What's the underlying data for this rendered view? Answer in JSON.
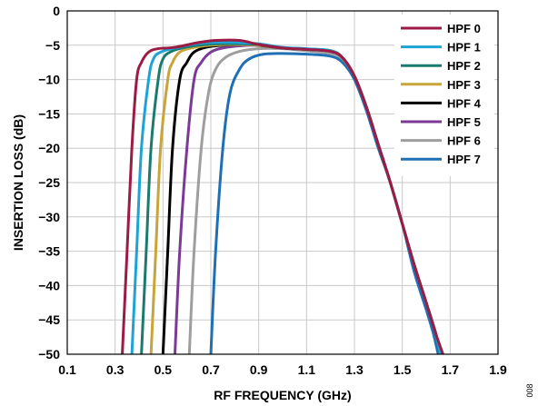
{
  "chart_data": {
    "type": "line",
    "title": "",
    "xlabel": "RF FREQUENCY (GHz)",
    "ylabel": "INSERTION LOSS (dB)",
    "xlim": [
      0.1,
      1.9
    ],
    "ylim": [
      -50,
      0
    ],
    "x_ticks": [
      0.1,
      0.3,
      0.5,
      0.7,
      0.9,
      1.1,
      1.3,
      1.5,
      1.7,
      1.9
    ],
    "x_tick_labels": [
      "0.1",
      "0.3",
      "0.5",
      "0.7",
      "0.9",
      "1.1",
      "1.3",
      "1.5",
      "1.7",
      "1.9"
    ],
    "y_ticks": [
      0,
      -5,
      -10,
      -15,
      -20,
      -25,
      -30,
      -35,
      -40,
      -45,
      -50
    ],
    "y_tick_labels": [
      "0",
      "−5",
      "−10",
      "−15",
      "−20",
      "−25",
      "−30",
      "−35",
      "−40",
      "−45",
      "−50"
    ],
    "grid": true,
    "legend_position": "top-right",
    "figure_id": "008",
    "series": [
      {
        "name": "HPF 0",
        "color": "#9b1b45",
        "points": [
          [
            0.33,
            -50
          ],
          [
            0.35,
            -35
          ],
          [
            0.37,
            -20
          ],
          [
            0.39,
            -10
          ],
          [
            0.41,
            -7.5
          ],
          [
            0.44,
            -6
          ],
          [
            0.48,
            -5.5
          ],
          [
            0.55,
            -5.3
          ],
          [
            0.65,
            -4.6
          ],
          [
            0.72,
            -4.3
          ],
          [
            0.82,
            -4.3
          ],
          [
            0.9,
            -4.9
          ],
          [
            1.0,
            -5.4
          ],
          [
            1.1,
            -5.6
          ],
          [
            1.2,
            -5.9
          ],
          [
            1.25,
            -6.8
          ],
          [
            1.3,
            -9.5
          ],
          [
            1.35,
            -14
          ],
          [
            1.4,
            -19.5
          ],
          [
            1.45,
            -25
          ],
          [
            1.5,
            -31
          ],
          [
            1.55,
            -37
          ],
          [
            1.6,
            -42.5
          ],
          [
            1.64,
            -47
          ],
          [
            1.67,
            -50
          ]
        ]
      },
      {
        "name": "HPF 1",
        "color": "#1ea3d6",
        "points": [
          [
            0.37,
            -50
          ],
          [
            0.39,
            -35
          ],
          [
            0.41,
            -20
          ],
          [
            0.44,
            -10
          ],
          [
            0.46,
            -7
          ],
          [
            0.49,
            -6
          ],
          [
            0.55,
            -5.4
          ],
          [
            0.62,
            -4.9
          ],
          [
            0.7,
            -4.6
          ],
          [
            0.8,
            -4.6
          ],
          [
            0.9,
            -4.8
          ],
          [
            1.0,
            -5.3
          ],
          [
            1.1,
            -5.5
          ],
          [
            1.2,
            -5.8
          ],
          [
            1.25,
            -6.8
          ],
          [
            1.3,
            -9.5
          ],
          [
            1.35,
            -14
          ],
          [
            1.4,
            -19.5
          ],
          [
            1.45,
            -25
          ],
          [
            1.5,
            -31
          ],
          [
            1.55,
            -37
          ],
          [
            1.6,
            -42.5
          ],
          [
            1.64,
            -47
          ],
          [
            1.66,
            -50
          ]
        ]
      },
      {
        "name": "HPF 2",
        "color": "#1b7a6e",
        "points": [
          [
            0.41,
            -50
          ],
          [
            0.43,
            -35
          ],
          [
            0.45,
            -20
          ],
          [
            0.48,
            -10
          ],
          [
            0.5,
            -7
          ],
          [
            0.53,
            -6
          ],
          [
            0.58,
            -5.4
          ],
          [
            0.65,
            -5.0
          ],
          [
            0.72,
            -4.8
          ],
          [
            0.82,
            -4.8
          ],
          [
            0.9,
            -4.9
          ],
          [
            1.0,
            -5.4
          ],
          [
            1.1,
            -5.6
          ],
          [
            1.2,
            -5.8
          ],
          [
            1.25,
            -6.8
          ],
          [
            1.3,
            -9.5
          ],
          [
            1.35,
            -14
          ],
          [
            1.4,
            -19.5
          ],
          [
            1.45,
            -25
          ],
          [
            1.5,
            -31
          ],
          [
            1.55,
            -37
          ],
          [
            1.6,
            -42.5
          ],
          [
            1.64,
            -47
          ],
          [
            1.66,
            -50
          ]
        ]
      },
      {
        "name": "HPF 3",
        "color": "#c9a43a",
        "points": [
          [
            0.45,
            -50
          ],
          [
            0.47,
            -35
          ],
          [
            0.49,
            -20
          ],
          [
            0.52,
            -10
          ],
          [
            0.54,
            -7.5
          ],
          [
            0.57,
            -6
          ],
          [
            0.62,
            -5.4
          ],
          [
            0.7,
            -5.0
          ],
          [
            0.8,
            -4.9
          ],
          [
            0.9,
            -5.0
          ],
          [
            1.0,
            -5.4
          ],
          [
            1.1,
            -5.6
          ],
          [
            1.2,
            -5.8
          ],
          [
            1.25,
            -6.8
          ],
          [
            1.3,
            -9.5
          ],
          [
            1.35,
            -14
          ],
          [
            1.4,
            -19.5
          ],
          [
            1.45,
            -25
          ],
          [
            1.5,
            -31
          ],
          [
            1.55,
            -37
          ],
          [
            1.6,
            -42.5
          ],
          [
            1.64,
            -47
          ],
          [
            1.66,
            -50
          ]
        ]
      },
      {
        "name": "HPF 4",
        "color": "#000000",
        "points": [
          [
            0.5,
            -50
          ],
          [
            0.52,
            -35
          ],
          [
            0.54,
            -20
          ],
          [
            0.57,
            -10
          ],
          [
            0.6,
            -7.5
          ],
          [
            0.63,
            -6
          ],
          [
            0.68,
            -5.3
          ],
          [
            0.75,
            -5.0
          ],
          [
            0.85,
            -4.9
          ],
          [
            0.92,
            -5.1
          ],
          [
            1.0,
            -5.4
          ],
          [
            1.1,
            -5.6
          ],
          [
            1.2,
            -5.8
          ],
          [
            1.25,
            -6.8
          ],
          [
            1.3,
            -9.5
          ],
          [
            1.35,
            -14
          ],
          [
            1.4,
            -19.5
          ],
          [
            1.45,
            -25
          ],
          [
            1.5,
            -31
          ],
          [
            1.55,
            -37
          ],
          [
            1.6,
            -42.5
          ],
          [
            1.64,
            -47
          ],
          [
            1.66,
            -50
          ]
        ]
      },
      {
        "name": "HPF 5",
        "color": "#7b3a96",
        "points": [
          [
            0.55,
            -50
          ],
          [
            0.57,
            -35
          ],
          [
            0.6,
            -20
          ],
          [
            0.63,
            -10
          ],
          [
            0.66,
            -7.5
          ],
          [
            0.7,
            -6
          ],
          [
            0.75,
            -5.4
          ],
          [
            0.82,
            -5.1
          ],
          [
            0.9,
            -5.0
          ],
          [
            1.0,
            -5.4
          ],
          [
            1.1,
            -5.6
          ],
          [
            1.2,
            -5.9
          ],
          [
            1.25,
            -6.8
          ],
          [
            1.3,
            -9.5
          ],
          [
            1.35,
            -14
          ],
          [
            1.4,
            -19.5
          ],
          [
            1.45,
            -25
          ],
          [
            1.5,
            -31
          ],
          [
            1.55,
            -37
          ],
          [
            1.6,
            -42.5
          ],
          [
            1.64,
            -47
          ],
          [
            1.66,
            -50
          ]
        ]
      },
      {
        "name": "HPF 6",
        "color": "#9e9e9e",
        "points": [
          [
            0.61,
            -50
          ],
          [
            0.63,
            -35
          ],
          [
            0.66,
            -20
          ],
          [
            0.69,
            -12
          ],
          [
            0.72,
            -8.5
          ],
          [
            0.76,
            -6.8
          ],
          [
            0.82,
            -5.9
          ],
          [
            0.9,
            -5.5
          ],
          [
            1.0,
            -5.5
          ],
          [
            1.1,
            -5.8
          ],
          [
            1.2,
            -6.2
          ],
          [
            1.25,
            -7.0
          ],
          [
            1.3,
            -9.5
          ],
          [
            1.35,
            -14
          ],
          [
            1.4,
            -19.5
          ],
          [
            1.45,
            -25
          ],
          [
            1.5,
            -31
          ],
          [
            1.55,
            -37
          ],
          [
            1.6,
            -42.5
          ],
          [
            1.64,
            -47
          ],
          [
            1.66,
            -50
          ]
        ]
      },
      {
        "name": "HPF 7",
        "color": "#1f6fb5",
        "points": [
          [
            0.7,
            -50
          ],
          [
            0.72,
            -35
          ],
          [
            0.75,
            -20
          ],
          [
            0.78,
            -12
          ],
          [
            0.82,
            -8.5
          ],
          [
            0.86,
            -7.0
          ],
          [
            0.92,
            -6.3
          ],
          [
            1.0,
            -6.2
          ],
          [
            1.1,
            -6.3
          ],
          [
            1.2,
            -6.6
          ],
          [
            1.25,
            -7.5
          ],
          [
            1.3,
            -10
          ],
          [
            1.35,
            -14.5
          ],
          [
            1.4,
            -20
          ],
          [
            1.45,
            -25
          ],
          [
            1.5,
            -31
          ],
          [
            1.55,
            -38
          ],
          [
            1.6,
            -43.5
          ],
          [
            1.63,
            -47
          ],
          [
            1.65,
            -50
          ]
        ]
      }
    ]
  }
}
